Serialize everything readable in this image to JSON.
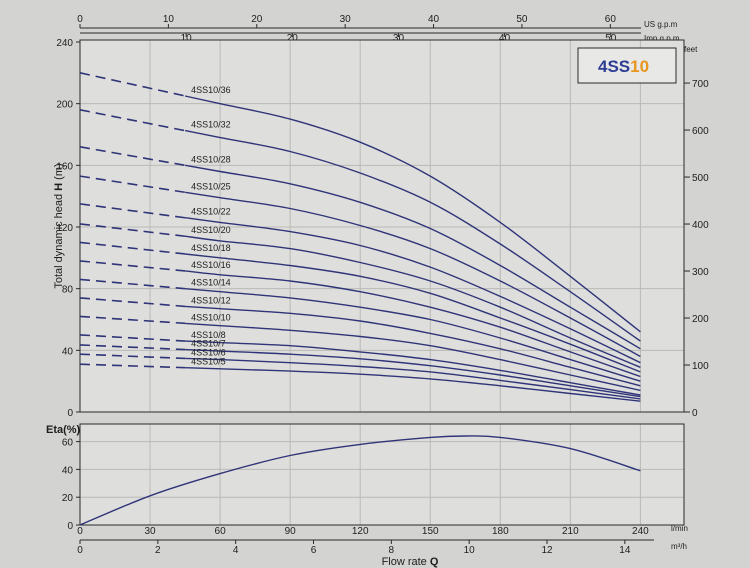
{
  "brand": {
    "prefix": "4SS",
    "suffix": "10"
  },
  "chart_data": [
    {
      "type": "line",
      "ylabel_prefix": "Total dynamic head ",
      "ylabel_var": "H",
      "ylabel_unit": " (m)",
      "ylim": [
        0,
        240
      ],
      "y_ticks": [
        0,
        40,
        80,
        120,
        160,
        200,
        240
      ],
      "x_lmin_lim": [
        0,
        245
      ],
      "right_axis": {
        "unit": "feet",
        "ticks": [
          0,
          100,
          200,
          300,
          400,
          500,
          600,
          700
        ]
      },
      "top_axis_us": {
        "unit": "US g.p.m",
        "ticks": [
          0,
          10,
          20,
          30,
          40,
          50,
          60
        ]
      },
      "top_axis_imp": {
        "unit": "Imp g.p.m",
        "ticks": [
          10,
          20,
          30,
          40,
          50
        ]
      },
      "x_dashed_end": 45,
      "series": [
        {
          "name": "4SS10/36",
          "x": [
            0,
            30,
            60,
            90,
            120,
            150,
            180,
            210,
            240
          ],
          "y": [
            220,
            210,
            200,
            190,
            175,
            153,
            123,
            88,
            52
          ]
        },
        {
          "name": "4SS10/32",
          "x": [
            0,
            30,
            60,
            90,
            120,
            150,
            180,
            210,
            240
          ],
          "y": [
            196,
            187,
            178,
            169,
            155,
            136,
            109,
            78,
            46
          ]
        },
        {
          "name": "4SS10/28",
          "x": [
            0,
            30,
            60,
            90,
            120,
            150,
            180,
            210,
            240
          ],
          "y": [
            172,
            164,
            156,
            148,
            136,
            119,
            95,
            68,
            41
          ]
        },
        {
          "name": "4SS10/25",
          "x": [
            0,
            30,
            60,
            90,
            120,
            150,
            180,
            210,
            240
          ],
          "y": [
            153,
            146,
            139,
            132,
            121,
            106,
            85,
            61,
            36
          ]
        },
        {
          "name": "4SS10/22",
          "x": [
            0,
            30,
            60,
            90,
            120,
            150,
            180,
            210,
            240
          ],
          "y": [
            135,
            129,
            123,
            117,
            108,
            94,
            75,
            54,
            32
          ]
        },
        {
          "name": "4SS10/20",
          "x": [
            0,
            30,
            60,
            90,
            120,
            150,
            180,
            210,
            240
          ],
          "y": [
            122,
            117,
            111,
            106,
            97,
            85,
            68,
            48,
            29
          ]
        },
        {
          "name": "4SS10/18",
          "x": [
            0,
            30,
            60,
            90,
            120,
            150,
            180,
            210,
            240
          ],
          "y": [
            110,
            105,
            100,
            95,
            88,
            77,
            61,
            44,
            26
          ]
        },
        {
          "name": "4SS10/16",
          "x": [
            0,
            30,
            60,
            90,
            120,
            150,
            180,
            210,
            240
          ],
          "y": [
            98,
            94,
            89,
            85,
            78,
            68,
            55,
            39,
            23
          ]
        },
        {
          "name": "4SS10/14",
          "x": [
            0,
            30,
            60,
            90,
            120,
            150,
            180,
            210,
            240
          ],
          "y": [
            86,
            82,
            78,
            74,
            68,
            60,
            48,
            34,
            20
          ]
        },
        {
          "name": "4SS10/12",
          "x": [
            0,
            30,
            60,
            90,
            120,
            150,
            180,
            210,
            240
          ],
          "y": [
            74,
            70,
            67,
            64,
            59,
            51,
            41,
            29,
            17
          ]
        },
        {
          "name": "4SS10/10",
          "x": [
            0,
            30,
            60,
            90,
            120,
            150,
            180,
            210,
            240
          ],
          "y": [
            62,
            59,
            56,
            53,
            49,
            43,
            34,
            24,
            14
          ]
        },
        {
          "name": "4SS10/8",
          "x": [
            0,
            30,
            60,
            90,
            120,
            150,
            180,
            210,
            240
          ],
          "y": [
            50,
            47,
            45,
            43,
            39,
            34,
            27,
            19,
            11
          ]
        },
        {
          "name": "4SS10/7",
          "x": [
            0,
            30,
            60,
            90,
            120,
            150,
            180,
            210,
            240
          ],
          "y": [
            43.5,
            41.5,
            39.5,
            37.5,
            34.5,
            30,
            24,
            17,
            10
          ]
        },
        {
          "name": "4SS10/6",
          "x": [
            0,
            30,
            60,
            90,
            120,
            150,
            180,
            210,
            240
          ],
          "y": [
            37.5,
            35.5,
            34,
            32,
            29.5,
            26,
            20.5,
            14.5,
            8.5
          ]
        },
        {
          "name": "4SS10/5",
          "x": [
            0,
            30,
            60,
            90,
            120,
            150,
            180,
            210,
            240
          ],
          "y": [
            31,
            29.5,
            28,
            26.5,
            24.5,
            21.5,
            17,
            12,
            7
          ]
        }
      ]
    },
    {
      "type": "line",
      "ylabel": "Eta(%)",
      "ylim": [
        0,
        70
      ],
      "y_ticks": [
        0,
        20,
        40,
        60
      ],
      "series": [
        {
          "name": "",
          "x": [
            0,
            30,
            60,
            90,
            120,
            150,
            165,
            180,
            210,
            240
          ],
          "y": [
            0,
            21,
            37,
            50,
            58,
            63,
            64,
            63,
            55,
            39
          ]
        }
      ]
    }
  ],
  "bottom_axis": {
    "lmin_unit": "l/min",
    "lmin_ticks": [
      0,
      30,
      60,
      90,
      120,
      150,
      180,
      210,
      240
    ],
    "m3h_unit": "m³/h",
    "m3h_ticks": [
      0,
      2,
      4,
      6,
      8,
      10,
      12,
      14
    ],
    "title_prefix": "Flow rate ",
    "title_var": "Q"
  }
}
